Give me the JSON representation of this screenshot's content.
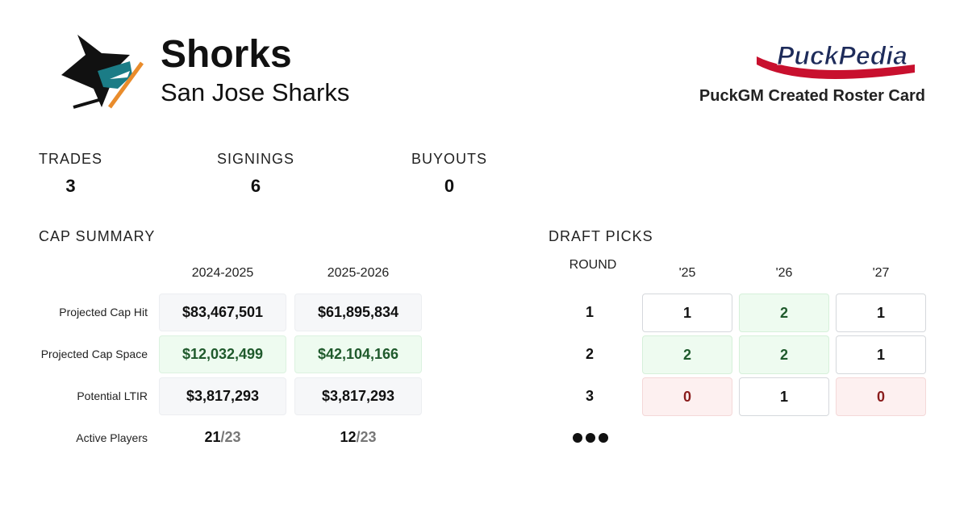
{
  "header": {
    "title": "Shorks",
    "subtitle": "San Jose Sharks",
    "brand": "PuckPedia",
    "caption": "PuckGM Created Roster Card"
  },
  "stats": [
    {
      "label": "TRADES",
      "value": "3"
    },
    {
      "label": "SIGNINGS",
      "value": "6"
    },
    {
      "label": "BUYOUTS",
      "value": "0"
    }
  ],
  "cap_summary": {
    "title": "CAP SUMMARY",
    "columns": [
      "2024-2025",
      "2025-2026"
    ],
    "rows": [
      {
        "label": "Projected Cap Hit",
        "cells": [
          "$83,467,501",
          "$61,895,834"
        ]
      },
      {
        "label": "Projected Cap Space",
        "cells": [
          "$12,032,499",
          "$42,104,166"
        ]
      },
      {
        "label": "Potential LTIR",
        "cells": [
          "$3,817,293",
          "$3,817,293"
        ]
      }
    ],
    "active": {
      "label": "Active Players",
      "cells": [
        {
          "count": "21",
          "limit": "/23"
        },
        {
          "count": "12",
          "limit": "/23"
        }
      ]
    }
  },
  "draft_picks": {
    "title": "DRAFT PICKS",
    "round_header": "ROUND",
    "years": [
      "'25",
      "'26",
      "'27"
    ],
    "rows": [
      {
        "round": "1",
        "picks": [
          1,
          2,
          1
        ]
      },
      {
        "round": "2",
        "picks": [
          2,
          2,
          1
        ]
      },
      {
        "round": "3",
        "picks": [
          0,
          1,
          0
        ]
      }
    ]
  }
}
